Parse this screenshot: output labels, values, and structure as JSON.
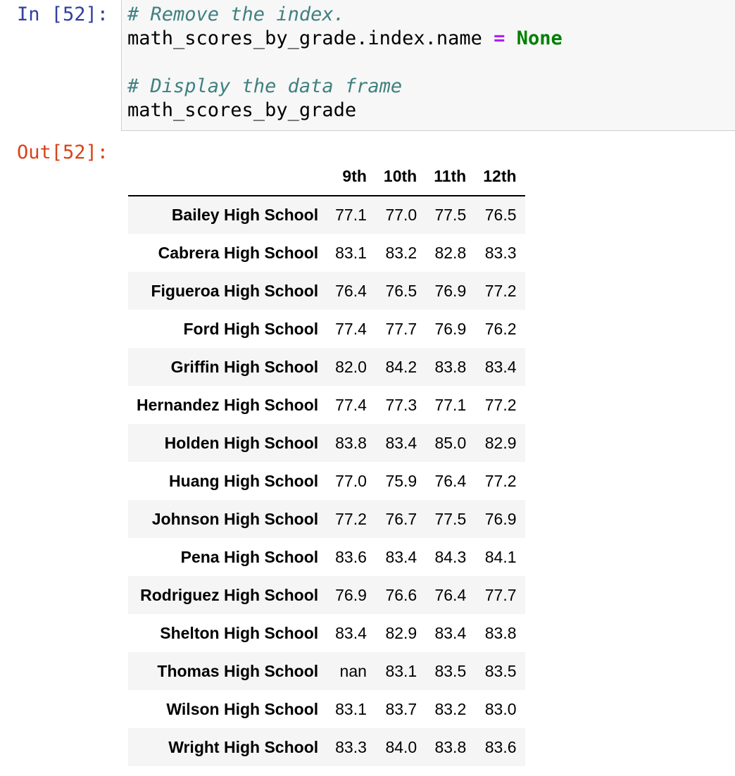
{
  "input_cell": {
    "prompt": "In [52]:",
    "lines": [
      [
        {
          "cls": "comment",
          "text": "# Remove the index."
        }
      ],
      [
        {
          "cls": "",
          "text": "math_scores_by_grade.index.name "
        },
        {
          "cls": "op",
          "text": "="
        },
        {
          "cls": "",
          "text": " "
        },
        {
          "cls": "kw",
          "text": "None"
        }
      ],
      [],
      [
        {
          "cls": "comment",
          "text": "# Display the data frame"
        }
      ],
      [
        {
          "cls": "",
          "text": "math_scores_by_grade"
        }
      ]
    ]
  },
  "output_cell": {
    "prompt": "Out[52]:",
    "table": {
      "columns": [
        "9th",
        "10th",
        "11th",
        "12th"
      ],
      "rows": [
        {
          "index": "Bailey High School",
          "values": [
            "77.1",
            "77.0",
            "77.5",
            "76.5"
          ]
        },
        {
          "index": "Cabrera High School",
          "values": [
            "83.1",
            "83.2",
            "82.8",
            "83.3"
          ]
        },
        {
          "index": "Figueroa High School",
          "values": [
            "76.4",
            "76.5",
            "76.9",
            "77.2"
          ]
        },
        {
          "index": "Ford High School",
          "values": [
            "77.4",
            "77.7",
            "76.9",
            "76.2"
          ]
        },
        {
          "index": "Griffin High School",
          "values": [
            "82.0",
            "84.2",
            "83.8",
            "83.4"
          ]
        },
        {
          "index": "Hernandez High School",
          "values": [
            "77.4",
            "77.3",
            "77.1",
            "77.2"
          ]
        },
        {
          "index": "Holden High School",
          "values": [
            "83.8",
            "83.4",
            "85.0",
            "82.9"
          ]
        },
        {
          "index": "Huang High School",
          "values": [
            "77.0",
            "75.9",
            "76.4",
            "77.2"
          ]
        },
        {
          "index": "Johnson High School",
          "values": [
            "77.2",
            "76.7",
            "77.5",
            "76.9"
          ]
        },
        {
          "index": "Pena High School",
          "values": [
            "83.6",
            "83.4",
            "84.3",
            "84.1"
          ]
        },
        {
          "index": "Rodriguez High School",
          "values": [
            "76.9",
            "76.6",
            "76.4",
            "77.7"
          ]
        },
        {
          "index": "Shelton High School",
          "values": [
            "83.4",
            "82.9",
            "83.4",
            "83.8"
          ]
        },
        {
          "index": "Thomas High School",
          "values": [
            "nan",
            "83.1",
            "83.5",
            "83.5"
          ]
        },
        {
          "index": "Wilson High School",
          "values": [
            "83.1",
            "83.7",
            "83.2",
            "83.0"
          ]
        },
        {
          "index": "Wright High School",
          "values": [
            "83.3",
            "84.0",
            "83.8",
            "83.6"
          ]
        }
      ]
    }
  },
  "colors": {
    "in_prompt": "#303f9f",
    "out_prompt": "#d84315",
    "comment": "#408080",
    "operator": "#aa22ff",
    "keyword": "#008000",
    "input_background": "#f7f7f7",
    "row_stripe": "#f5f5f5"
  }
}
